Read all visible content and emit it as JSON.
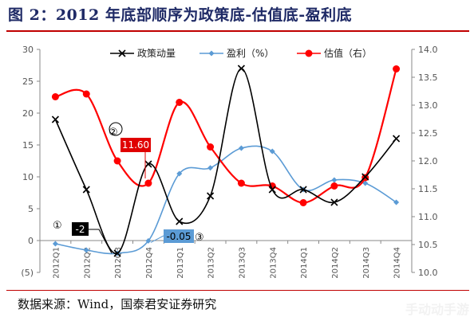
{
  "title": "图 2：2012 年底部顺序为政策底-估值底-盈利底",
  "source": "数据来源：Wind，国泰君安证券研究",
  "watermark": "手动动手游",
  "colors": {
    "policy": "#000000",
    "profit": "#5b9bd5",
    "valuation": "#ff0000",
    "title": "#1f2a66",
    "rule": "#c00000"
  },
  "chart_data": {
    "type": "line",
    "categories": [
      "2012Q1",
      "2012Q2",
      "2012Q3",
      "2012Q4",
      "2013Q1",
      "2013Q2",
      "2013Q3",
      "2013Q4",
      "2014Q1",
      "2014Q2",
      "2014Q3",
      "2014Q4"
    ],
    "y_left": {
      "range": [
        -5,
        30
      ],
      "ticks": [
        -5,
        0,
        5,
        10,
        15,
        20,
        25,
        30
      ],
      "tick_labels": [
        "(5)",
        "0",
        "5",
        "10",
        "15",
        "20",
        "25",
        "30"
      ]
    },
    "y_right": {
      "range": [
        10.0,
        14.0
      ],
      "ticks": [
        10.0,
        10.5,
        11.0,
        11.5,
        12.0,
        12.5,
        13.0,
        13.5,
        14.0
      ],
      "tick_labels": [
        "10.0",
        "10.5",
        "11.0",
        "11.5",
        "12.0",
        "12.5",
        "13.0",
        "13.5",
        "14.0"
      ]
    },
    "series": [
      {
        "name": "政策动量",
        "axis": "left",
        "marker": "x",
        "color": "#000000",
        "values": [
          19,
          8,
          -2,
          12,
          3,
          7,
          27,
          8,
          8,
          6,
          10,
          16
        ]
      },
      {
        "name": "盈利（%）",
        "axis": "left",
        "marker": "diamond",
        "color": "#5b9bd5",
        "values": [
          -0.5,
          -1.5,
          -2,
          -0.05,
          10.5,
          11.4,
          14.5,
          14,
          8,
          9.5,
          9,
          6
        ]
      },
      {
        "name": "估值（右）",
        "axis": "right",
        "marker": "circle",
        "color": "#ff0000",
        "values": [
          13.15,
          13.2,
          12.0,
          11.6,
          13.05,
          12.25,
          11.6,
          11.55,
          11.25,
          11.55,
          11.7,
          13.65
        ]
      }
    ],
    "annotations": [
      {
        "marker": "①",
        "label": "-2",
        "style": "black-box"
      },
      {
        "marker": "②",
        "label": "11.60",
        "style": "red-box"
      },
      {
        "marker": "③",
        "label": "-0.05",
        "style": "blue-box"
      }
    ],
    "legend_position": "top",
    "grid": false
  }
}
